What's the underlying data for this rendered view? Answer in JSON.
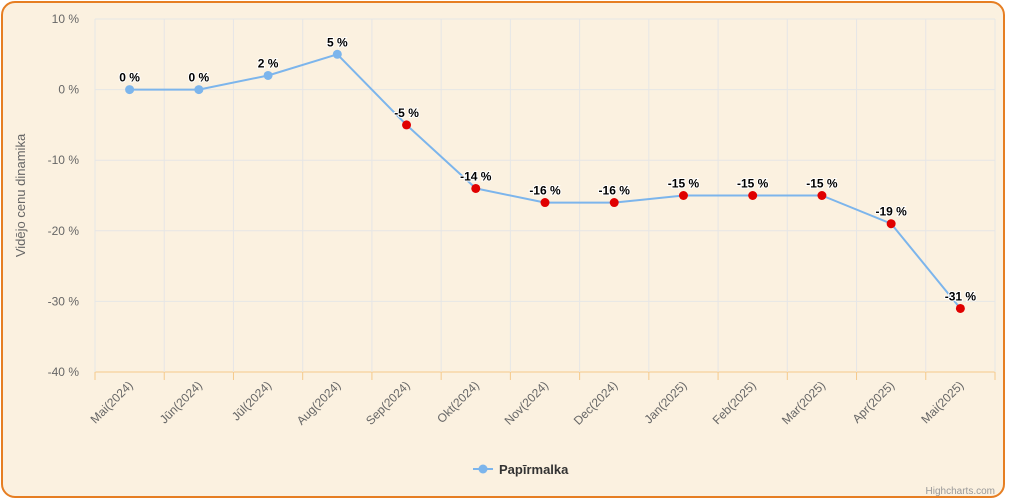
{
  "chart_data": {
    "type": "line",
    "title": "",
    "ylabel": "Vidējo cenu dinamika",
    "xlabel": "",
    "categories": [
      "Mai(2024)",
      "Jūn(2024)",
      "Jūl(2024)",
      "Aug(2024)",
      "Sep(2024)",
      "Okt(2024)",
      "Nov(2024)",
      "Dec(2024)",
      "Jan(2025)",
      "Feb(2025)",
      "Mar(2025)",
      "Apr(2025)",
      "Mai(2025)"
    ],
    "series": [
      {
        "name": "Papīrmalka",
        "values": [
          0,
          0,
          2,
          5,
          -5,
          -14,
          -16,
          -16,
          -15,
          -15,
          -15,
          -19,
          -31
        ],
        "labels": [
          "0 %",
          "0 %",
          "2 %",
          "5 %",
          "-5 %",
          "-14 %",
          "-16 %",
          "-16 %",
          "-15 %",
          "-15 %",
          "-15 %",
          "-19 %",
          "-31 %"
        ]
      }
    ],
    "ylim": [
      -40,
      10
    ],
    "yticks": [
      10,
      0,
      -10,
      -20,
      -30,
      -40
    ],
    "ytick_labels": [
      "10 %",
      "0 %",
      "-10 %",
      "-20 %",
      "-30 %",
      "-40 %"
    ],
    "grid": true,
    "legend_position": "bottom-center",
    "colors": {
      "line": "#7cb5ec",
      "positive_marker": "#7cb5ec",
      "negative_marker": "#e00000",
      "background": "#fbf1e0",
      "border": "#e67e22",
      "grid": "#e6e6e6",
      "axis": "#f5c98a"
    }
  },
  "credits": "Highcharts.com"
}
